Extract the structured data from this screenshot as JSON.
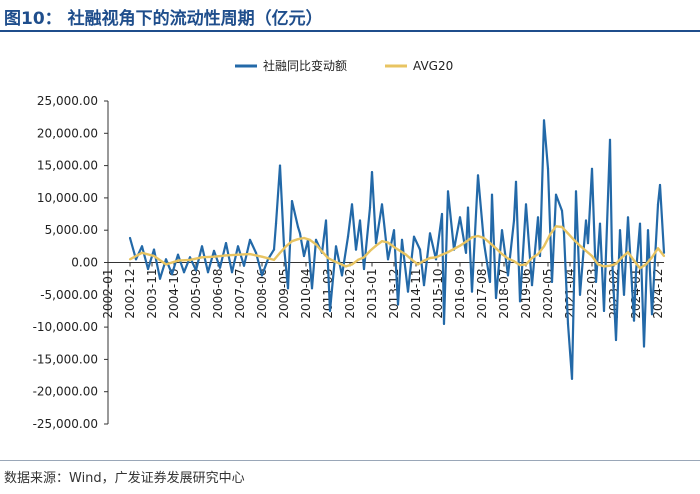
{
  "header": {
    "title": "图10：  社融视角下的流动性周期（亿元）"
  },
  "footer": {
    "source": "数据来源：Wind，广发证券发展研究中心"
  },
  "chart_data": {
    "type": "line",
    "title": "",
    "xlabel": "",
    "ylabel": "",
    "ylim": [
      -25000,
      25000
    ],
    "y_ticks": [
      25000,
      20000,
      15000,
      10000,
      5000,
      0,
      -5000,
      -10000,
      -15000,
      -20000,
      -25000
    ],
    "y_tick_labels": [
      "25,000.00",
      "20,000.00",
      "15,000.00",
      "10,000.00",
      "5,000.00",
      "0.00",
      "-5,000.00",
      "-10,000.00",
      "-15,000.00",
      "-20,000.00",
      "-25,000.00"
    ],
    "x_range": [
      "2002-01",
      "2025-03"
    ],
    "x_ticks": [
      "2002-01",
      "2002-12",
      "2003-11",
      "2004-10",
      "2005-09",
      "2006-08",
      "2007-07",
      "2008-06",
      "2009-05",
      "2010-04",
      "2011-03",
      "2012-02",
      "2013-01",
      "2013-12",
      "2014-11",
      "2015-10",
      "2016-09",
      "2017-08",
      "2018-07",
      "2019-06",
      "2020-05",
      "2021-04",
      "2022-03",
      "2023-02",
      "2024-01",
      "2024-12"
    ],
    "legend_position": "top-center",
    "grid": false,
    "series": [
      {
        "name": "社融同比变动额",
        "color": "#2369a8",
        "x": [
          "2002-12",
          "2003-03",
          "2003-06",
          "2003-09",
          "2003-12",
          "2004-03",
          "2004-06",
          "2004-09",
          "2004-12",
          "2005-03",
          "2005-06",
          "2005-09",
          "2005-12",
          "2006-03",
          "2006-06",
          "2006-09",
          "2006-12",
          "2007-03",
          "2007-06",
          "2007-09",
          "2007-12",
          "2008-03",
          "2008-06",
          "2008-09",
          "2008-12",
          "2009-01",
          "2009-03",
          "2009-05",
          "2009-07",
          "2009-09",
          "2009-12",
          "2010-01",
          "2010-03",
          "2010-05",
          "2010-07",
          "2010-09",
          "2010-12",
          "2011-02",
          "2011-04",
          "2011-07",
          "2011-10",
          "2012-01",
          "2012-03",
          "2012-05",
          "2012-07",
          "2012-09",
          "2012-12",
          "2013-01",
          "2013-03",
          "2013-06",
          "2013-09",
          "2013-12",
          "2014-02",
          "2014-04",
          "2014-07",
          "2014-10",
          "2015-01",
          "2015-03",
          "2015-06",
          "2015-09",
          "2015-12",
          "2016-01",
          "2016-03",
          "2016-06",
          "2016-09",
          "2016-12",
          "2017-01",
          "2017-03",
          "2017-06",
          "2017-09",
          "2017-12",
          "2018-01",
          "2018-03",
          "2018-06",
          "2018-09",
          "2018-12",
          "2019-01",
          "2019-03",
          "2019-06",
          "2019-09",
          "2019-12",
          "2020-01",
          "2020-03",
          "2020-05",
          "2020-07",
          "2020-09",
          "2020-12",
          "2021-01",
          "2021-03",
          "2021-05",
          "2021-07",
          "2021-09",
          "2021-12",
          "2022-01",
          "2022-03",
          "2022-05",
          "2022-07",
          "2022-09",
          "2022-12",
          "2023-01",
          "2023-03",
          "2023-05",
          "2023-07",
          "2023-09",
          "2023-12",
          "2024-01",
          "2024-03",
          "2024-05",
          "2024-07",
          "2024-09",
          "2024-12",
          "2025-01",
          "2025-03"
        ],
        "values": [
          3800,
          500,
          2500,
          -1000,
          2000,
          -2500,
          500,
          -1800,
          1200,
          -1500,
          800,
          -1200,
          2500,
          -1500,
          1800,
          -800,
          3000,
          -1500,
          2500,
          -500,
          3500,
          1500,
          -2000,
          500,
          2000,
          6000,
          15000,
          2500,
          -4000,
          9500,
          5500,
          4500,
          1000,
          3500,
          -4000,
          3500,
          1500,
          6500,
          -7500,
          2500,
          -2000,
          4000,
          9000,
          2000,
          6500,
          -1000,
          8500,
          14000,
          3000,
          9000,
          500,
          5000,
          -6500,
          3500,
          -4500,
          4000,
          2000,
          -3500,
          4500,
          500,
          7500,
          -9500,
          11000,
          2000,
          7000,
          1500,
          8500,
          -4500,
          13500,
          3000,
          -3000,
          10500,
          -5500,
          5000,
          -2000,
          6500,
          12500,
          -6000,
          9000,
          -3500,
          7000,
          1000,
          22000,
          14500,
          -3000,
          10500,
          8000,
          4500,
          -9500,
          -18000,
          11000,
          -5000,
          6500,
          3000,
          14500,
          -3000,
          6000,
          -7500,
          19000,
          1000,
          -12000,
          5000,
          -5000,
          7000,
          -9000,
          -1500,
          6000,
          -13000,
          5000,
          -8000,
          9000,
          12000,
          1500
        ]
      },
      {
        "name": "AVG20",
        "color": "#e8c462",
        "x": [
          "2002-12",
          "2003-06",
          "2003-12",
          "2004-06",
          "2004-12",
          "2005-06",
          "2005-12",
          "2006-06",
          "2006-12",
          "2007-06",
          "2007-12",
          "2008-06",
          "2008-12",
          "2009-03",
          "2009-06",
          "2009-09",
          "2009-12",
          "2010-03",
          "2010-06",
          "2010-09",
          "2010-12",
          "2011-03",
          "2011-06",
          "2011-09",
          "2011-12",
          "2012-03",
          "2012-06",
          "2012-09",
          "2012-12",
          "2013-03",
          "2013-06",
          "2013-09",
          "2013-12",
          "2014-03",
          "2014-06",
          "2014-09",
          "2014-12",
          "2015-03",
          "2015-06",
          "2015-09",
          "2015-12",
          "2016-03",
          "2016-06",
          "2016-09",
          "2016-12",
          "2017-03",
          "2017-06",
          "2017-09",
          "2017-12",
          "2018-03",
          "2018-06",
          "2018-09",
          "2018-12",
          "2019-03",
          "2019-06",
          "2019-09",
          "2019-12",
          "2020-03",
          "2020-06",
          "2020-09",
          "2020-12",
          "2021-03",
          "2021-06",
          "2021-09",
          "2021-12",
          "2022-03",
          "2022-06",
          "2022-09",
          "2022-12",
          "2023-03",
          "2023-06",
          "2023-09",
          "2023-12",
          "2024-03",
          "2024-06",
          "2024-09",
          "2024-12",
          "2025-03"
        ],
        "values": [
          500,
          1500,
          1000,
          -300,
          300,
          400,
          800,
          900,
          1100,
          1200,
          1300,
          900,
          400,
          1500,
          2500,
          3300,
          3600,
          3800,
          3500,
          2800,
          1700,
          700,
          200,
          -200,
          -600,
          -300,
          400,
          800,
          1800,
          2600,
          3300,
          3100,
          2400,
          1800,
          1200,
          400,
          -300,
          300,
          700,
          800,
          1200,
          1600,
          2100,
          2600,
          3200,
          3900,
          4100,
          3800,
          3000,
          2200,
          1300,
          600,
          200,
          -400,
          -300,
          700,
          1300,
          2500,
          4300,
          5600,
          5500,
          4500,
          3500,
          2600,
          1800,
          1000,
          -300,
          -600,
          -500,
          -200,
          800,
          1600,
          300,
          -900,
          -300,
          800,
          2200,
          1000
        ]
      }
    ]
  }
}
